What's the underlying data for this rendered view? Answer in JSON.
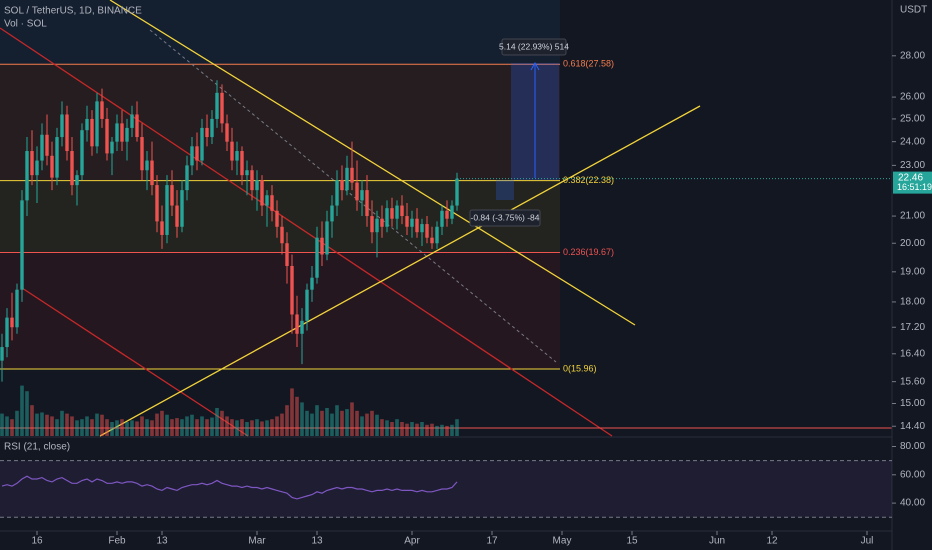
{
  "chart_data": {
    "type": "candlestick",
    "title": "SOL / TetherUS, 1D, BINANCE",
    "volume_label": "Vol · SOL",
    "currency": "USDT",
    "countdown": "16:51:19",
    "log_scale": true,
    "ylim": [
      14.15,
      30.95
    ],
    "yticks": [
      {
        "value": 28,
        "label": "28.00"
      },
      {
        "value": 26,
        "label": "26.00"
      },
      {
        "value": 25,
        "label": "25.00"
      },
      {
        "value": 24,
        "label": "24.00"
      },
      {
        "value": 23,
        "label": "23.00"
      },
      {
        "value": 21,
        "label": "21.00"
      },
      {
        "value": 20,
        "label": "20.00"
      },
      {
        "value": 19,
        "label": "19.00"
      },
      {
        "value": 18,
        "label": "18.00"
      },
      {
        "value": 17.2,
        "label": "17.20"
      },
      {
        "value": 16.4,
        "label": "16.40"
      },
      {
        "value": 15.6,
        "label": "15.60"
      },
      {
        "value": 15,
        "label": "15.00"
      },
      {
        "value": 14.4,
        "label": "14.40"
      }
    ],
    "xlim": [
      -0.4,
      178
    ],
    "xticks": [
      {
        "value": 7,
        "label": "16"
      },
      {
        "value": 23,
        "label": "Feb"
      },
      {
        "value": 32,
        "label": "13"
      },
      {
        "value": 51,
        "label": "Mar"
      },
      {
        "value": 63,
        "label": "13"
      },
      {
        "value": 82,
        "label": "Apr"
      },
      {
        "value": 98,
        "label": "17"
      },
      {
        "value": 112,
        "label": "May"
      },
      {
        "value": 126,
        "label": "15"
      },
      {
        "value": 143,
        "label": "Jun"
      },
      {
        "value": 154,
        "label": "12"
      },
      {
        "value": 173,
        "label": "Jul"
      }
    ],
    "up_color": "#26a69a",
    "down_color": "#ef5350",
    "candles": [
      [
        16.2,
        17.0,
        15.6,
        16.6
      ],
      [
        16.6,
        17.8,
        16.3,
        17.5
      ],
      [
        17.5,
        18.3,
        16.8,
        17.2
      ],
      [
        17.2,
        18.6,
        17.0,
        18.4
      ],
      [
        18.4,
        22.0,
        18.0,
        21.6
      ],
      [
        21.6,
        24.2,
        21.0,
        23.6
      ],
      [
        23.6,
        24.5,
        22.2,
        22.6
      ],
      [
        22.6,
        23.8,
        21.5,
        23.2
      ],
      [
        23.2,
        24.8,
        22.8,
        24.3
      ],
      [
        24.3,
        25.2,
        23.0,
        23.4
      ],
      [
        23.4,
        24.0,
        22.0,
        22.5
      ],
      [
        22.5,
        24.6,
        22.2,
        24.2
      ],
      [
        24.2,
        25.8,
        23.8,
        25.2
      ],
      [
        25.2,
        25.6,
        23.2,
        23.6
      ],
      [
        23.6,
        24.2,
        21.8,
        22.2
      ],
      [
        22.2,
        22.8,
        21.4,
        22.6
      ],
      [
        22.6,
        24.8,
        22.4,
        24.5
      ],
      [
        24.5,
        25.6,
        24.0,
        25.0
      ],
      [
        25.0,
        25.4,
        23.4,
        23.8
      ],
      [
        23.8,
        26.2,
        23.5,
        25.8
      ],
      [
        25.8,
        26.4,
        24.6,
        25.0
      ],
      [
        25.0,
        25.5,
        23.2,
        23.5
      ],
      [
        23.5,
        24.2,
        22.6,
        24.0
      ],
      [
        24.0,
        25.2,
        23.6,
        24.8
      ],
      [
        24.8,
        25.4,
        23.6,
        24.0
      ],
      [
        24.0,
        25.0,
        23.2,
        24.6
      ],
      [
        24.6,
        25.6,
        24.2,
        25.2
      ],
      [
        25.2,
        25.8,
        24.0,
        24.2
      ],
      [
        24.2,
        24.8,
        22.4,
        22.8
      ],
      [
        22.8,
        23.6,
        22.0,
        23.2
      ],
      [
        23.2,
        24.0,
        21.8,
        22.2
      ],
      [
        22.2,
        22.6,
        20.4,
        20.8
      ],
      [
        20.8,
        21.4,
        19.8,
        20.3
      ],
      [
        20.3,
        22.6,
        20.0,
        22.2
      ],
      [
        22.2,
        22.8,
        21.0,
        21.4
      ],
      [
        21.4,
        22.0,
        20.2,
        20.6
      ],
      [
        20.6,
        22.4,
        20.4,
        22.0
      ],
      [
        22.0,
        23.4,
        21.6,
        23.0
      ],
      [
        23.0,
        24.2,
        22.6,
        23.8
      ],
      [
        23.8,
        24.4,
        22.8,
        23.2
      ],
      [
        23.2,
        25.0,
        23.0,
        24.6
      ],
      [
        24.6,
        25.2,
        23.8,
        24.2
      ],
      [
        24.2,
        25.4,
        23.9,
        25.0
      ],
      [
        25.0,
        26.8,
        24.6,
        26.2
      ],
      [
        26.2,
        26.6,
        24.4,
        24.8
      ],
      [
        24.8,
        25.2,
        23.6,
        24.0
      ],
      [
        24.0,
        24.6,
        22.8,
        23.2
      ],
      [
        23.2,
        24.0,
        22.6,
        23.6
      ],
      [
        23.6,
        23.8,
        22.2,
        22.6
      ],
      [
        22.6,
        23.2,
        21.8,
        22.8
      ],
      [
        22.8,
        23.0,
        21.6,
        22.0
      ],
      [
        22.0,
        22.8,
        21.2,
        22.4
      ],
      [
        22.4,
        22.6,
        21.0,
        21.4
      ],
      [
        21.4,
        22.0,
        20.6,
        21.8
      ],
      [
        21.8,
        22.2,
        20.8,
        21.2
      ],
      [
        21.2,
        21.6,
        20.2,
        20.6
      ],
      [
        20.6,
        21.0,
        19.6,
        20.0
      ],
      [
        20.0,
        20.4,
        18.6,
        19.2
      ],
      [
        19.2,
        19.6,
        17.0,
        17.6
      ],
      [
        17.6,
        18.2,
        16.6,
        17.0
      ],
      [
        17.0,
        17.8,
        16.1,
        17.4
      ],
      [
        17.4,
        18.6,
        17.1,
        18.4
      ],
      [
        18.4,
        19.2,
        18.0,
        18.8
      ],
      [
        18.8,
        20.6,
        18.6,
        20.2
      ],
      [
        20.2,
        20.8,
        19.2,
        19.6
      ],
      [
        19.6,
        21.2,
        19.4,
        20.8
      ],
      [
        20.8,
        21.8,
        20.2,
        21.4
      ],
      [
        21.4,
        22.8,
        21.0,
        22.4
      ],
      [
        22.4,
        23.0,
        21.6,
        22.0
      ],
      [
        22.0,
        23.4,
        21.8,
        22.9
      ],
      [
        22.9,
        24.0,
        22.0,
        22.3
      ],
      [
        22.3,
        23.2,
        21.2,
        21.6
      ],
      [
        21.6,
        22.4,
        21.0,
        22.0
      ],
      [
        22.0,
        22.6,
        20.6,
        21.0
      ],
      [
        21.0,
        21.6,
        20.0,
        20.4
      ],
      [
        20.4,
        21.2,
        19.5,
        20.9
      ],
      [
        20.9,
        21.4,
        20.2,
        20.6
      ],
      [
        20.6,
        21.6,
        20.4,
        21.3
      ],
      [
        21.3,
        21.7,
        20.6,
        20.9
      ],
      [
        20.9,
        21.6,
        20.5,
        21.4
      ],
      [
        21.4,
        21.8,
        20.7,
        21.0
      ],
      [
        21.0,
        21.5,
        20.3,
        20.6
      ],
      [
        20.6,
        21.2,
        20.2,
        20.9
      ],
      [
        20.9,
        21.3,
        20.2,
        20.4
      ],
      [
        20.4,
        20.9,
        19.9,
        20.7
      ],
      [
        20.7,
        21.0,
        20.0,
        20.2
      ],
      [
        20.2,
        20.6,
        19.8,
        20.0
      ],
      [
        20.0,
        20.8,
        19.8,
        20.6
      ],
      [
        20.6,
        21.4,
        20.3,
        21.2
      ],
      [
        21.2,
        21.6,
        20.6,
        20.9
      ],
      [
        20.9,
        21.6,
        20.7,
        21.4
      ],
      [
        21.4,
        22.7,
        21.2,
        22.46
      ]
    ],
    "volume_lim": [
      0,
      100
    ],
    "volume": [
      40,
      35,
      30,
      45,
      90,
      80,
      55,
      40,
      42,
      38,
      35,
      30,
      45,
      40,
      35,
      28,
      30,
      35,
      30,
      40,
      38,
      30,
      25,
      28,
      30,
      25,
      28,
      26,
      35,
      30,
      28,
      40,
      45,
      38,
      30,
      32,
      30,
      35,
      38,
      30,
      35,
      30,
      33,
      50,
      45,
      35,
      30,
      28,
      30,
      25,
      28,
      30,
      26,
      28,
      30,
      35,
      40,
      55,
      85,
      70,
      60,
      45,
      40,
      55,
      45,
      50,
      40,
      55,
      45,
      48,
      60,
      45,
      35,
      40,
      45,
      38,
      30,
      28,
      25,
      30,
      25,
      22,
      25,
      22,
      25,
      20,
      22,
      18,
      20,
      18,
      20,
      30
    ],
    "rsi": {
      "label": "RSI (21, close)",
      "ylim": [
        21,
        86
      ],
      "yticks": [
        {
          "value": 80,
          "label": "80.00"
        },
        {
          "value": 60,
          "label": "60.00"
        },
        {
          "value": 40,
          "label": "40.00"
        }
      ],
      "bands": [
        70,
        30
      ],
      "color": "#7e57c2",
      "values": [
        52,
        53,
        52,
        54,
        57,
        59,
        57,
        57,
        58,
        56,
        55,
        57,
        58,
        56,
        54,
        54,
        56,
        57,
        55,
        57,
        56,
        54,
        54,
        55,
        54,
        55,
        55,
        54,
        52,
        53,
        52,
        50,
        49,
        51,
        50,
        49,
        51,
        52,
        53,
        53,
        54,
        53,
        54,
        56,
        54,
        53,
        52,
        52,
        51,
        52,
        51,
        51,
        50,
        51,
        50,
        49,
        48,
        47,
        44,
        43,
        44,
        45,
        46,
        48,
        47,
        49,
        50,
        51,
        50,
        51,
        51,
        50,
        50,
        49,
        48,
        49,
        49,
        50,
        49,
        50,
        49,
        49,
        49,
        48,
        49,
        48,
        48,
        49,
        50,
        50,
        51,
        55
      ]
    },
    "fib_levels": [
      {
        "ratio": 0.618,
        "price": 27.58,
        "label": "0.618(27.58)",
        "color": "#f57c4d"
      },
      {
        "ratio": 0.382,
        "price": 22.38,
        "label": "0.382(22.38)",
        "color": "#f2d33a"
      },
      {
        "ratio": 0.236,
        "price": 19.67,
        "label": "0.236(19.67)",
        "color": "#ef5350"
      },
      {
        "ratio": 0,
        "price": 15.96,
        "label": "0(15.96)",
        "color": "#f2d33a"
      }
    ],
    "measures": [
      "5.14 (22.93%) 514",
      "-0.84 (-3.75%) -84"
    ]
  }
}
